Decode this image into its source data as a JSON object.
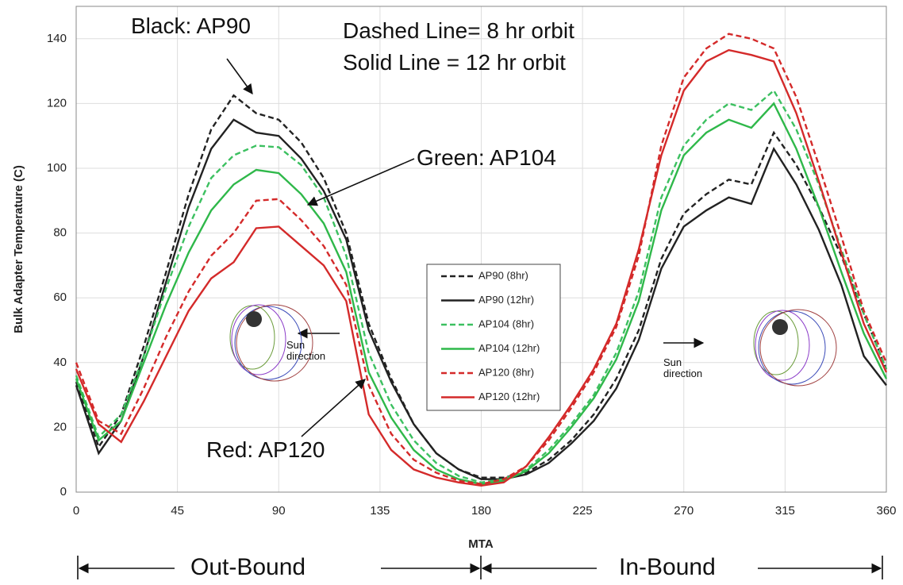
{
  "chart_data": {
    "type": "line",
    "y_label": "Bulk Adapter Temperature (C)",
    "x_label": "MTA",
    "x": [
      0,
      10,
      20,
      30,
      40,
      50,
      60,
      70,
      80,
      90,
      100,
      110,
      120,
      130,
      140,
      150,
      160,
      170,
      180,
      190,
      200,
      210,
      220,
      230,
      240,
      250,
      260,
      270,
      280,
      290,
      300,
      310,
      320,
      330,
      340,
      350,
      360
    ],
    "series": [
      {
        "name": "AP90 (8hr)",
        "color": "#222222",
        "dash": true,
        "values": [
          34,
          14,
          24,
          45,
          68,
          92,
          112,
          122.5,
          117,
          115,
          108,
          97,
          80,
          52,
          35,
          21,
          12,
          7,
          4.5,
          4.5,
          6,
          10,
          16,
          24,
          35,
          50,
          72,
          86,
          92,
          96.5,
          95,
          111,
          101,
          88,
          73,
          55,
          38
        ]
      },
      {
        "name": "AP90 (12hr)",
        "color": "#222222",
        "dash": false,
        "values": [
          33,
          12,
          22,
          42,
          65,
          88,
          106,
          115,
          111,
          110,
          103,
          93,
          78,
          50,
          34,
          21,
          12,
          7,
          4,
          4,
          5.5,
          9,
          15,
          22,
          32,
          47,
          69,
          82,
          87,
          91,
          89,
          106,
          95,
          81,
          64,
          42,
          33
        ]
      },
      {
        "name": "AP104 (8hr)",
        "color": "#3cc060",
        "dash": true,
        "values": [
          36,
          17,
          24,
          42,
          63,
          82,
          97,
          104,
          107,
          106.5,
          101,
          91,
          73,
          43,
          27,
          16,
          9,
          5,
          3,
          4,
          7,
          13,
          21,
          30,
          43,
          62,
          91,
          107,
          115,
          120,
          118,
          124,
          112,
          95,
          75,
          55,
          38
        ]
      },
      {
        "name": "AP104 (12hr)",
        "color": "#2fb84a",
        "dash": false,
        "values": [
          35,
          16,
          22,
          40,
          58,
          74,
          87,
          95,
          99.5,
          98.5,
          92,
          83,
          68,
          37,
          23,
          13,
          7,
          4,
          2.5,
          3.5,
          6.5,
          12,
          20,
          29,
          41,
          59,
          87,
          104,
          111,
          115,
          112.5,
          120,
          106,
          88,
          68,
          49,
          35
        ]
      },
      {
        "name": "AP120 (8hr)",
        "color": "#d42a2a",
        "dash": true,
        "values": [
          40,
          22,
          18,
          32,
          48,
          62,
          73,
          80,
          90,
          90.5,
          84,
          76,
          64,
          33,
          18,
          10,
          6,
          3.5,
          2.5,
          4,
          8,
          16,
          26,
          37,
          51,
          73,
          107,
          128,
          137,
          141.5,
          140,
          137,
          122,
          101,
          79,
          56,
          40
        ]
      },
      {
        "name": "AP120 (12hr)",
        "color": "#d42a2a",
        "dash": false,
        "values": [
          38,
          21,
          15.5,
          28,
          42,
          56,
          66,
          71,
          81.5,
          82,
          76,
          70,
          59,
          24,
          13,
          7,
          4.5,
          3,
          2,
          3,
          8,
          17,
          27,
          38,
          52,
          75,
          104,
          124,
          133,
          136.5,
          135,
          133,
          117,
          96,
          74,
          52,
          37
        ]
      }
    ],
    "xlim": [
      0,
      360
    ],
    "xticks": [
      0,
      45,
      90,
      135,
      180,
      225,
      270,
      315,
      360
    ],
    "ylim": [
      0,
      150
    ],
    "yticks": [
      0,
      20,
      40,
      60,
      80,
      100,
      120,
      140
    ],
    "grid": true,
    "annotations": [
      "Black: AP90",
      "Dashed Line= 8 hr orbit",
      "Solid Line = 12 hr orbit",
      "Green: AP104",
      "Red: AP120",
      "Sun direction",
      "Sun direction",
      "Out-Bound",
      "In-Bound"
    ]
  }
}
